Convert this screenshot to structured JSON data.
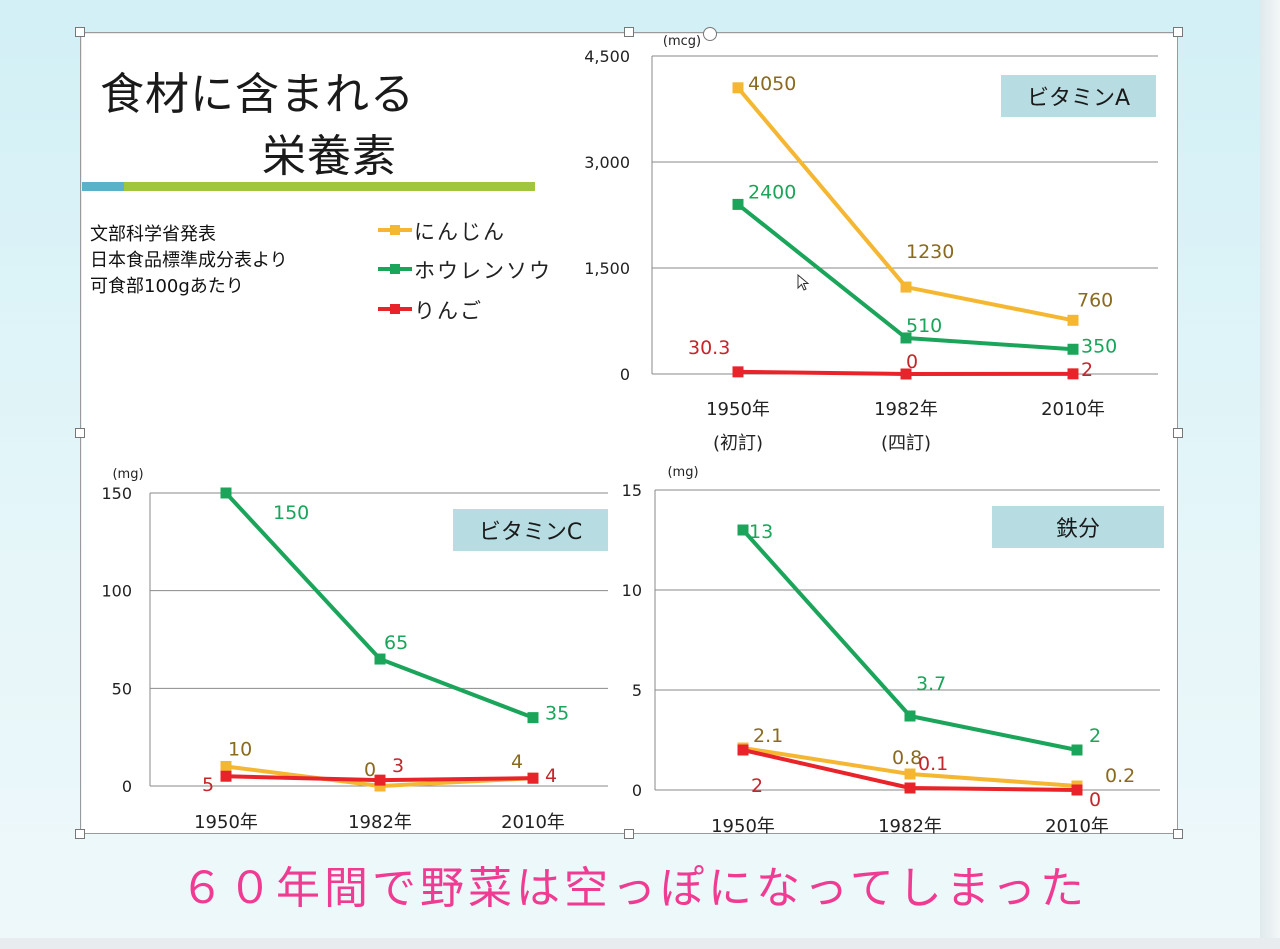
{
  "slide": {
    "title_line1": "食材に含まれる",
    "title_line2": "栄養素",
    "source_lines": [
      "文部科学省発表",
      "日本食品標準成分表より",
      "可食部100gあたり"
    ],
    "legend": [
      {
        "label": "にんじん",
        "color": "#f5b731"
      },
      {
        "label": "ホウレンソウ",
        "color": "#1aa55a"
      },
      {
        "label": "りんご",
        "color": "#e8242a"
      }
    ],
    "caption": "６０年間で野菜は空っぽになってしまった",
    "cursor_icon": "mouse-pointer-icon"
  },
  "colors": {
    "carrot": "#f5b731",
    "spinach": "#1aa55a",
    "apple": "#e8242a",
    "carrot_label": "#8a6a1e",
    "spinach_label": "#1aa55a",
    "apple_label": "#c4262c",
    "badge_bg": "#b7dce2",
    "caption": "#ef3b92",
    "title_bar_blue": "#5ab1c9",
    "title_bar_green": "#9fc63c"
  },
  "chart_data": [
    {
      "id": "vitamin-a",
      "type": "line",
      "badge": "ビタミンA",
      "unit": "(mcg)",
      "categories": [
        "1950年",
        "1982年",
        "2010年"
      ],
      "category_sublabels": [
        "(初訂)",
        "(四訂)",
        ""
      ],
      "ylim": [
        0,
        4500
      ],
      "yticks": [
        0,
        1500,
        3000,
        4500
      ],
      "ytick_labels": [
        "0",
        "1,500",
        "3,000",
        "4,500"
      ],
      "grid": true,
      "series": [
        {
          "name": "にんじん",
          "values": [
            4050,
            1230,
            760
          ],
          "labels": [
            "4050",
            "1230",
            "760"
          ]
        },
        {
          "name": "ホウレンソウ",
          "values": [
            2400,
            510,
            350
          ],
          "labels": [
            "2400",
            "510",
            "350"
          ]
        },
        {
          "name": "りんご",
          "values": [
            30.3,
            0,
            2
          ],
          "labels": [
            "30.3",
            "0",
            "2"
          ]
        }
      ]
    },
    {
      "id": "vitamin-c",
      "type": "line",
      "badge": "ビタミンC",
      "unit": "(mg)",
      "categories": [
        "1950年",
        "1982年",
        "2010年"
      ],
      "category_sublabels": [
        "",
        "",
        ""
      ],
      "ylim": [
        0,
        150
      ],
      "yticks": [
        0,
        50,
        100,
        150
      ],
      "ytick_labels": [
        "0",
        "50",
        "100",
        "150"
      ],
      "grid": true,
      "series": [
        {
          "name": "にんじん",
          "values": [
            10,
            0,
            4
          ],
          "labels": [
            "10",
            "0",
            "4"
          ]
        },
        {
          "name": "ホウレンソウ",
          "values": [
            150,
            65,
            35
          ],
          "labels": [
            "150",
            "65",
            "35"
          ]
        },
        {
          "name": "りんご",
          "values": [
            5,
            3,
            4
          ],
          "labels": [
            "5",
            "3",
            "4"
          ]
        }
      ]
    },
    {
      "id": "iron",
      "type": "line",
      "badge": "鉄分",
      "unit": "(mg)",
      "categories": [
        "1950年",
        "1982年",
        "2010年"
      ],
      "category_sublabels": [
        "",
        "",
        ""
      ],
      "ylim": [
        0,
        15
      ],
      "yticks": [
        0,
        5,
        10,
        15
      ],
      "ytick_labels": [
        "0",
        "5",
        "10",
        "15"
      ],
      "grid": true,
      "series": [
        {
          "name": "にんじん",
          "values": [
            2.1,
            0.8,
            0.2
          ],
          "labels": [
            "2.1",
            "0.8",
            "0.2"
          ]
        },
        {
          "name": "ホウレンソウ",
          "values": [
            13,
            3.7,
            2
          ],
          "labels": [
            "13",
            "3.7",
            "2"
          ]
        },
        {
          "name": "りんご",
          "values": [
            2,
            0.1,
            0
          ],
          "labels": [
            "2",
            "0.1",
            "0"
          ]
        }
      ]
    }
  ]
}
